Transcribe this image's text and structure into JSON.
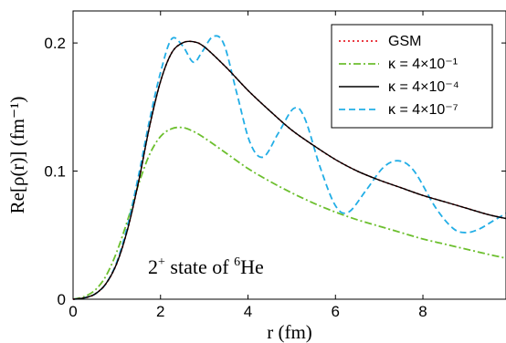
{
  "chart_data": {
    "type": "line",
    "xlabel": "r (fm)",
    "ylabel": "Re[ρ(r)]  (fm⁻¹)",
    "xlim": [
      0,
      9.9
    ],
    "ylim": [
      0,
      0.225
    ],
    "xticks": [
      0,
      2,
      4,
      6,
      8
    ],
    "xtick_labels": [
      "0",
      "2",
      "4",
      "6",
      "8"
    ],
    "yticks": [
      0,
      0.1,
      0.2
    ],
    "ytick_labels": [
      "0",
      "0.1",
      "0.2"
    ],
    "legend_position": "top-right",
    "annotation": {
      "base": "2",
      "sup": "+",
      "mid": " state of ",
      "pre_sup": "6",
      "tail": "He"
    },
    "series": [
      {
        "name": "GSM",
        "color": "#e8202a",
        "style": "dotted",
        "x": [
          0,
          0.25,
          0.5,
          0.75,
          1.0,
          1.25,
          1.5,
          1.75,
          2.0,
          2.25,
          2.5,
          2.75,
          3.0,
          3.5,
          4.0,
          4.5,
          5.0,
          5.5,
          6.0,
          6.5,
          7.0,
          7.5,
          8.0,
          8.5,
          9.0,
          9.5,
          9.9
        ],
        "y": [
          0,
          0.001,
          0.004,
          0.012,
          0.028,
          0.055,
          0.092,
          0.135,
          0.17,
          0.192,
          0.2,
          0.201,
          0.197,
          0.181,
          0.163,
          0.147,
          0.132,
          0.12,
          0.109,
          0.1,
          0.093,
          0.087,
          0.081,
          0.076,
          0.071,
          0.066,
          0.063
        ]
      },
      {
        "name": "κ = 4×10⁻¹",
        "color": "#6cbf2e",
        "style": "dashdot",
        "x": [
          0,
          0.25,
          0.5,
          0.75,
          1.0,
          1.25,
          1.5,
          1.75,
          2.0,
          2.25,
          2.5,
          2.75,
          3.0,
          3.5,
          4.0,
          4.5,
          5.0,
          5.5,
          6.0,
          6.5,
          7.0,
          7.5,
          8.0,
          8.5,
          9.0,
          9.5,
          9.9
        ],
        "y": [
          0,
          0.002,
          0.007,
          0.018,
          0.037,
          0.062,
          0.09,
          0.113,
          0.127,
          0.133,
          0.134,
          0.131,
          0.126,
          0.114,
          0.102,
          0.092,
          0.083,
          0.075,
          0.068,
          0.062,
          0.057,
          0.052,
          0.047,
          0.043,
          0.039,
          0.035,
          0.032
        ]
      },
      {
        "name": "κ = 4×10⁻⁴",
        "color": "#000000",
        "style": "solid",
        "x": [
          0,
          0.25,
          0.5,
          0.75,
          1.0,
          1.25,
          1.5,
          1.75,
          2.0,
          2.25,
          2.5,
          2.75,
          3.0,
          3.5,
          4.0,
          4.5,
          5.0,
          5.5,
          6.0,
          6.5,
          7.0,
          7.5,
          8.0,
          8.5,
          9.0,
          9.5,
          9.9
        ],
        "y": [
          0,
          0.001,
          0.004,
          0.012,
          0.028,
          0.055,
          0.092,
          0.135,
          0.17,
          0.192,
          0.2,
          0.201,
          0.197,
          0.181,
          0.163,
          0.147,
          0.132,
          0.12,
          0.109,
          0.1,
          0.093,
          0.087,
          0.081,
          0.076,
          0.071,
          0.066,
          0.063
        ]
      },
      {
        "name": "κ = 4×10⁻⁷",
        "color": "#22aee6",
        "style": "dashed",
        "x": [
          0,
          0.25,
          0.5,
          0.75,
          1.0,
          1.25,
          1.5,
          1.75,
          2.0,
          2.25,
          2.5,
          2.75,
          2.95,
          3.2,
          3.45,
          3.75,
          4.05,
          4.35,
          4.7,
          5.05,
          5.3,
          5.65,
          6.0,
          6.3,
          6.7,
          7.1,
          7.45,
          7.8,
          8.3,
          8.7,
          9.0,
          9.3,
          9.6,
          9.9
        ],
        "y": [
          0,
          0.001,
          0.004,
          0.012,
          0.029,
          0.058,
          0.097,
          0.14,
          0.177,
          0.203,
          0.198,
          0.185,
          0.193,
          0.205,
          0.199,
          0.16,
          0.122,
          0.111,
          0.13,
          0.149,
          0.141,
          0.103,
          0.073,
          0.068,
          0.085,
          0.103,
          0.108,
          0.1,
          0.071,
          0.055,
          0.052,
          0.055,
          0.061,
          0.067
        ]
      }
    ]
  }
}
